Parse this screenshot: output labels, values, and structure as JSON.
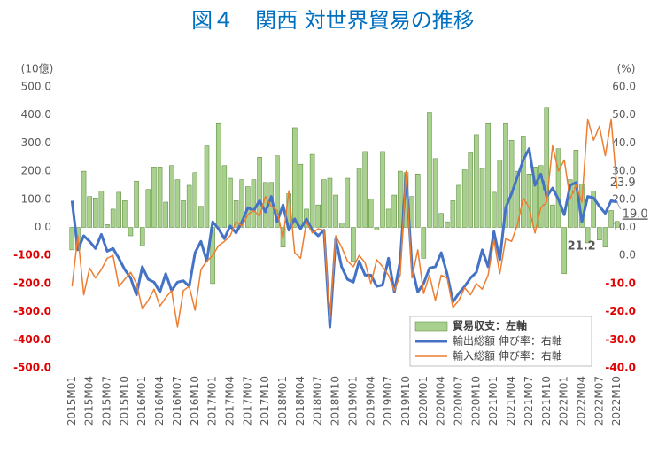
{
  "chart_data": {
    "type": "bar",
    "title": "図４　関西 対世界貿易の推移",
    "y_unit": "(10億)",
    "y2_unit": "(%)",
    "categories": [
      "2015M01",
      null,
      null,
      "2015M04",
      null,
      null,
      "2015M07",
      null,
      null,
      "2015M10",
      null,
      null,
      "2016M01",
      null,
      null,
      "2016M04",
      null,
      null,
      "2016M07",
      null,
      null,
      "2016M10",
      null,
      null,
      "2017M01",
      null,
      null,
      "2017M04",
      null,
      null,
      "2017M07",
      null,
      null,
      "2017M10",
      null,
      null,
      "2018M01",
      null,
      null,
      "2018M04",
      null,
      null,
      "2018M07",
      null,
      null,
      "2018M10",
      null,
      null,
      "2019M01",
      null,
      null,
      "2019M04",
      null,
      null,
      "2019M07",
      null,
      null,
      "2019M10",
      null,
      null,
      "2020M01",
      null,
      null,
      "2020M04",
      null,
      null,
      "2020M07",
      null,
      null,
      "2020M10",
      null,
      null,
      "2021M01",
      null,
      null,
      "2021M04",
      null,
      null,
      "2021M07",
      null,
      null,
      "2021M10",
      null,
      null,
      "2022M01",
      null,
      null,
      "2022M04",
      null,
      null,
      "2022M07",
      null,
      null,
      "2022M10"
    ],
    "series": [
      {
        "name": "貿易収支：左軸",
        "type": "bar",
        "axis": "y",
        "color": "#a9d18e",
        "edge_color": "#548235",
        "values": [
          -80,
          -80,
          200,
          110,
          105,
          130,
          10,
          65,
          125,
          95,
          -30,
          165,
          -65,
          135,
          215,
          215,
          90,
          220,
          170,
          95,
          150,
          195,
          75,
          290,
          -200,
          370,
          220,
          175,
          95,
          170,
          145,
          170,
          250,
          160,
          160,
          255,
          -70,
          120,
          355,
          225,
          65,
          260,
          80,
          170,
          175,
          115,
          15,
          175,
          -120,
          210,
          270,
          100,
          -10,
          270,
          65,
          115,
          200,
          195,
          110,
          190,
          -110,
          410,
          245,
          50,
          20,
          95,
          150,
          205,
          265,
          330,
          210,
          370,
          125,
          240,
          370,
          310,
          200,
          325,
          190,
          215,
          220,
          425,
          80,
          280,
          -165,
          170,
          275,
          155,
          -55,
          130,
          -45,
          -70,
          60,
          21.2
        ],
        "value_labels": [
          null,
          null,
          null,
          null,
          null,
          null,
          null,
          null,
          null,
          null,
          null,
          null,
          null,
          null,
          null,
          null,
          null,
          null,
          null,
          null,
          null,
          null,
          null,
          null,
          null,
          null,
          null,
          null,
          null,
          null,
          null,
          null,
          null,
          null,
          null,
          null,
          null,
          null,
          null,
          null,
          null,
          null,
          null,
          null,
          null,
          null,
          null,
          null,
          null,
          null,
          null,
          null,
          null,
          null,
          null,
          null,
          null,
          null,
          null,
          null,
          null,
          null,
          null,
          null,
          null,
          null,
          null,
          null,
          null,
          null,
          null,
          null,
          null,
          null,
          null,
          null,
          null,
          null,
          null,
          null,
          null,
          null,
          null,
          null,
          null,
          null,
          null,
          null,
          null,
          null,
          null,
          null,
          null,
          "21.2"
        ]
      },
      {
        "name": "輸出総額 伸び率：右軸",
        "type": "line",
        "axis": "y2",
        "color": "#4472c4",
        "values": [
          19.5,
          2,
          7,
          5,
          2.5,
          7.5,
          1.5,
          2.5,
          -1,
          -5,
          -8,
          -14,
          -4,
          -8.5,
          -9.5,
          -13,
          -6.5,
          -12.5,
          -9.5,
          -9,
          -11,
          1,
          5,
          -2,
          12,
          9.5,
          6,
          10.5,
          8,
          12,
          17,
          16,
          19.5,
          15.5,
          21,
          12,
          18,
          9,
          13,
          9.5,
          13,
          9,
          7,
          9,
          -25.5,
          6,
          -4,
          -8.5,
          -9.5,
          -2,
          -7,
          -7,
          -11,
          -10.5,
          -1,
          -13,
          -2,
          29,
          -4,
          -13,
          -10,
          -4.5,
          -4,
          1,
          -6.5,
          -16.5,
          -13.5,
          -11,
          -8,
          -6,
          2,
          -4,
          8.5,
          -1.5,
          17,
          22,
          28,
          34,
          38,
          25,
          29,
          21,
          24,
          20,
          14.5,
          25,
          26,
          12,
          21,
          20.5,
          17.5,
          15,
          19.5,
          19.0
        ],
        "value_labels": [
          null,
          null,
          null,
          null,
          null,
          null,
          null,
          null,
          null,
          null,
          null,
          null,
          null,
          null,
          null,
          null,
          null,
          null,
          null,
          null,
          null,
          null,
          null,
          null,
          null,
          null,
          null,
          null,
          null,
          null,
          null,
          null,
          null,
          null,
          null,
          null,
          null,
          null,
          null,
          null,
          null,
          null,
          null,
          null,
          null,
          null,
          null,
          null,
          null,
          null,
          null,
          null,
          null,
          null,
          null,
          null,
          null,
          null,
          null,
          null,
          null,
          null,
          null,
          null,
          null,
          null,
          null,
          null,
          null,
          null,
          null,
          null,
          null,
          null,
          null,
          null,
          null,
          null,
          null,
          null,
          null,
          null,
          null,
          null,
          null,
          null,
          null,
          null,
          null,
          null,
          null,
          null,
          null,
          "19.0"
        ]
      },
      {
        "name": "輸入総額 伸び率：右軸",
        "type": "line",
        "axis": "y2",
        "color": "#ed7d31",
        "values": [
          -11,
          7,
          -14,
          -4.5,
          -8,
          -5,
          -1,
          0,
          -11,
          -8.5,
          -6,
          -10,
          -19,
          -16,
          -12,
          -18,
          -15,
          -12.5,
          -25.5,
          -12.5,
          -11,
          -19.5,
          -5,
          -2,
          0,
          3.5,
          5,
          7,
          12,
          10.5,
          14.5,
          16,
          14,
          21,
          17.5,
          16,
          6,
          23,
          1,
          -1,
          12,
          8,
          9.5,
          9,
          -22.5,
          7,
          3,
          -2,
          -4,
          0,
          -2.5,
          -10,
          -1.5,
          -4,
          -7,
          -12.5,
          -7,
          30,
          -8,
          2,
          -13.5,
          -7,
          -16,
          -7,
          -8,
          -18.5,
          -16,
          -11.5,
          -14,
          -10,
          -12,
          -7,
          5.5,
          -6.5,
          6,
          5,
          11,
          20.5,
          17,
          8,
          17,
          19,
          39,
          30,
          34,
          20,
          25,
          19,
          48.5,
          41,
          46,
          35.5,
          48.5,
          23.9
        ],
        "value_labels": [
          null,
          null,
          null,
          null,
          null,
          null,
          null,
          null,
          null,
          null,
          null,
          null,
          null,
          null,
          null,
          null,
          null,
          null,
          null,
          null,
          null,
          null,
          null,
          null,
          null,
          null,
          null,
          null,
          null,
          null,
          null,
          null,
          null,
          null,
          null,
          null,
          null,
          null,
          null,
          null,
          null,
          null,
          null,
          null,
          null,
          null,
          null,
          null,
          null,
          null,
          null,
          null,
          null,
          null,
          null,
          null,
          null,
          null,
          null,
          null,
          null,
          null,
          null,
          null,
          null,
          null,
          null,
          null,
          null,
          null,
          null,
          null,
          null,
          null,
          null,
          null,
          null,
          null,
          null,
          null,
          null,
          null,
          null,
          null,
          null,
          null,
          null,
          null,
          null,
          null,
          null,
          null,
          null,
          "23.9"
        ]
      }
    ],
    "ylim": [
      -500,
      500
    ],
    "yticks": [
      {
        "value": -500,
        "label": "-500.0"
      },
      {
        "value": -400,
        "label": "-400.0"
      },
      {
        "value": -300,
        "label": "-300.0"
      },
      {
        "value": -200,
        "label": "-200.0"
      },
      {
        "value": -100,
        "label": "-100.0"
      },
      {
        "value": 0,
        "label": "0.0"
      },
      {
        "value": 100,
        "label": "100.0"
      },
      {
        "value": 200,
        "label": "200.0"
      },
      {
        "value": 300,
        "label": "300.0"
      },
      {
        "value": 400,
        "label": "400.0"
      },
      {
        "value": 500,
        "label": "500.0"
      }
    ],
    "y2lim": [
      -40,
      60
    ],
    "y2ticks": [
      {
        "value": -40,
        "label": "-40.0"
      },
      {
        "value": -30,
        "label": "-30.0"
      },
      {
        "value": -20,
        "label": "-20.0"
      },
      {
        "value": -10,
        "label": "-10.0"
      },
      {
        "value": 0,
        "label": "0.0"
      },
      {
        "value": 10,
        "label": "10.0"
      },
      {
        "value": 20,
        "label": "20.0"
      },
      {
        "value": 30,
        "label": "30.0"
      },
      {
        "value": 40,
        "label": "40.0"
      },
      {
        "value": 50,
        "label": "50.0"
      },
      {
        "value": 60,
        "label": "60.0"
      }
    ],
    "negative_tick_color": "#e00000",
    "tick_color": "#595959",
    "grid": false,
    "legend": "lower right"
  }
}
